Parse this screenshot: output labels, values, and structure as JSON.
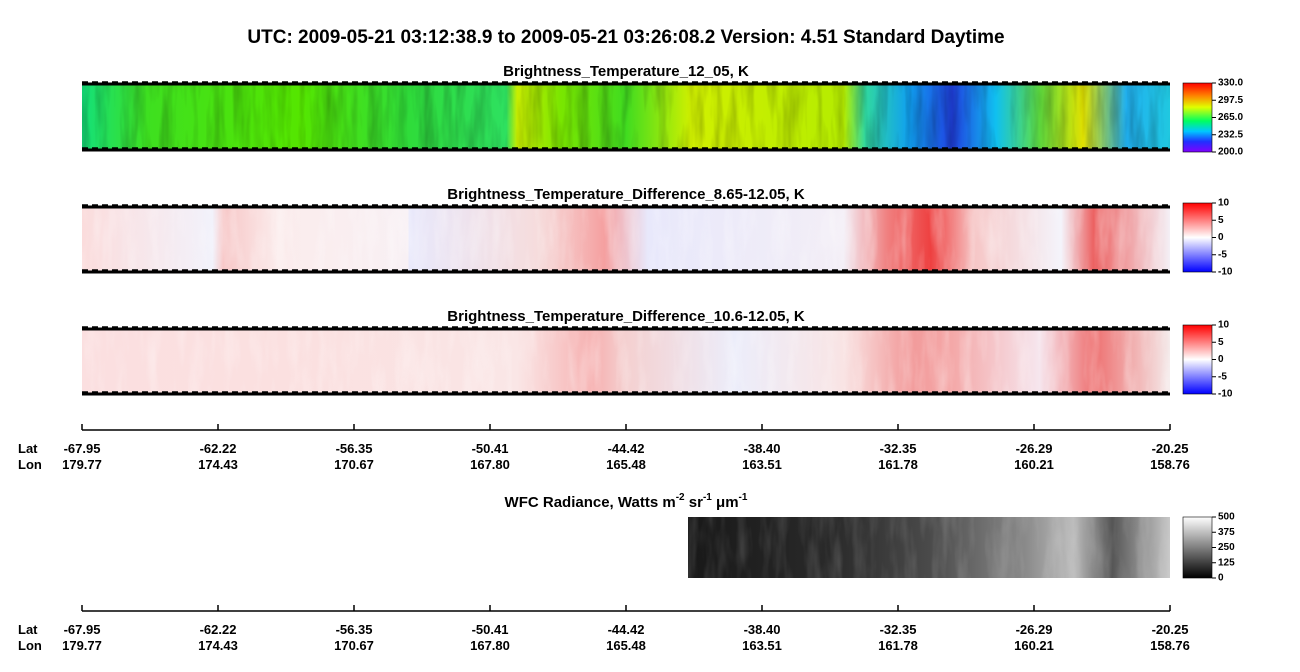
{
  "title": "UTC:  2009-05-21   03:12:38.9  to  2009-05-21   03:26:08.2    Version: 4.51  Standard Daytime",
  "panels": [
    {
      "title": "Brightness_Temperature_12_05, K",
      "colorbar": [
        "330.0",
        "297.5",
        "265.0",
        "232.5",
        "200.0"
      ]
    },
    {
      "title": "Brightness_Temperature_Difference_8.65-12.05, K",
      "colorbar": [
        "10",
        "5",
        "0",
        "-5",
        "-10"
      ]
    },
    {
      "title": "Brightness_Temperature_Difference_10.6-12.05, K",
      "colorbar": [
        "10",
        "5",
        "0",
        "-5",
        "-10"
      ]
    },
    {
      "title": [
        "WFC Radiance, Watts m",
        "-2",
        " sr",
        "-1",
        " μm",
        "-1"
      ],
      "colorbar": [
        "500",
        "375",
        "250",
        "125",
        "0"
      ]
    }
  ],
  "axes": [
    {
      "lat_label": "Lat",
      "lon_label": "Lon",
      "lat": [
        "-67.95",
        "-62.22",
        "-56.35",
        "-50.41",
        "-44.42",
        "-38.40",
        "-32.35",
        "-26.29",
        "-20.25"
      ],
      "lon": [
        "179.77",
        "174.43",
        "170.67",
        "167.80",
        "165.48",
        "163.51",
        "161.78",
        "160.21",
        "158.76"
      ]
    },
    {
      "lat_label": "Lat",
      "lon_label": "Lon",
      "lat": [
        "-67.95",
        "-62.22",
        "-56.35",
        "-50.41",
        "-44.42",
        "-38.40",
        "-32.35",
        "-26.29",
        "-20.25"
      ],
      "lon": [
        "179.77",
        "174.43",
        "170.67",
        "167.80",
        "165.48",
        "163.51",
        "161.78",
        "160.21",
        "158.76"
      ]
    }
  ]
}
